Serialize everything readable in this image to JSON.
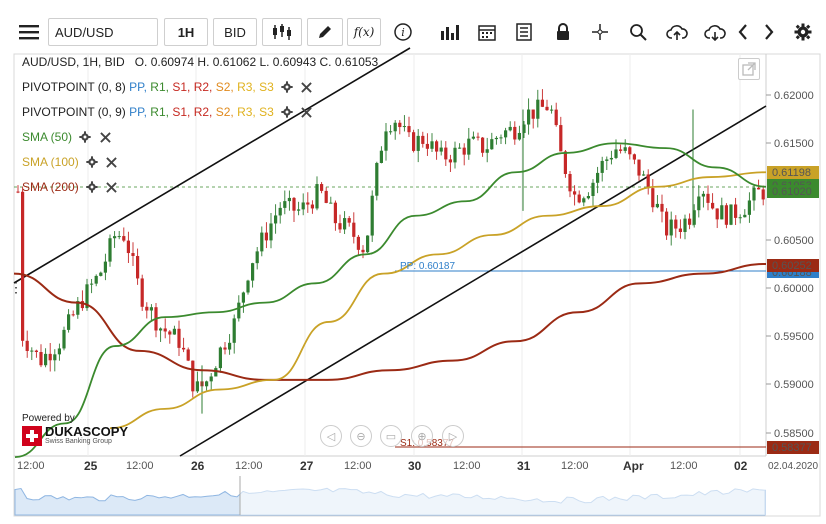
{
  "toolbar": {
    "menu_icon": "hamburger-icon",
    "symbol_value": "AUD/USD",
    "timeframe_label": "1H",
    "side_label": "BID",
    "fx_label": "f(x)"
  },
  "chart_header": {
    "ohlc_line": "AUD/USD, 1H, BID   O. 0.60974 H. 0.61062 L. 0.60943 C. 0.61053"
  },
  "legend": [
    {
      "text_parts": [
        "PIVOTPOINT (0, 8)",
        "PP,",
        "R1,",
        "S1,",
        "R2,",
        "S2,",
        "R3,",
        "S3"
      ],
      "id": "pivot-8"
    },
    {
      "text_parts": [
        "PIVOTPOINT (0, 9)",
        "PP,",
        "R1,",
        "S1,",
        "R2,",
        "S2,",
        "R3,",
        "S3"
      ],
      "id": "pivot-9"
    }
  ],
  "sma": [
    {
      "label": "SMA (50)",
      "color": "#3b8a2e"
    },
    {
      "label": "SMA (100)",
      "color": "#c9a227"
    },
    {
      "label": "SMA (200)",
      "color": "#9b2a14"
    }
  ],
  "colors": {
    "pp": "#2f7fc9",
    "r1": "#3b8a2e",
    "s1": "#c62a22",
    "r2": "#c62a22",
    "s2": "#e08a1e",
    "r3": "#e0b21e",
    "s3": "#e0b21e",
    "up": "#2e7d32",
    "down": "#c62828"
  },
  "price_axis": {
    "ticks": [
      "0.62000",
      "0.61500",
      "0.60500",
      "0.60000",
      "0.59500",
      "0.59000",
      "0.58500"
    ],
    "badges": [
      {
        "text": "0.61198",
        "color": "#c9a227",
        "text_color": "#222"
      },
      {
        "text": "0.61053",
        "color": "#3b8a2e",
        "text_color": "#fff"
      },
      {
        "text": "0.61020",
        "color": "#3b8a2e",
        "text_color": "#fff"
      },
      {
        "text": "0.60252",
        "color": "#9b2a14",
        "text_color": "#fff"
      },
      {
        "text": "0.60188",
        "color": "#2f7fc9",
        "text_color": "#fff"
      },
      {
        "text": "0.58377",
        "color": "#9b2a14",
        "text_color": "#fff"
      }
    ]
  },
  "pivot_lines": {
    "pp_label": "PP: 0.60187",
    "s1_label": "S1: 0.58377"
  },
  "time_axis": {
    "ticks": [
      "12:00",
      "25",
      "12:00",
      "26",
      "12:00",
      "27",
      "12:00",
      "30",
      "12:00",
      "31",
      "12:00",
      "Apr",
      "12:00",
      "02",
      "02.04.2020"
    ]
  },
  "watermark": {
    "powered_by": "Powered by",
    "brand": "DUKASCOPY",
    "tagline": "Swiss Banking Group"
  },
  "chart_data": {
    "type": "candlestick",
    "symbol": "AUD/USD",
    "timeframe": "1H",
    "y_range": [
      0.582,
      0.6225
    ],
    "series": [
      {
        "name": "SMA (50)",
        "values": [
          0.5825,
          0.586,
          0.594,
          0.597,
          0.5975,
          0.5985,
          0.6005,
          0.6035,
          0.6075,
          0.609,
          0.612,
          0.614,
          0.615,
          0.6145,
          0.6125,
          0.6105
        ]
      },
      {
        "name": "SMA (100)",
        "values": [
          0.5855,
          0.5875,
          0.5895,
          0.5905,
          0.5965,
          0.6015,
          0.6035,
          0.6055,
          0.6075,
          0.6085,
          0.6105,
          0.6115,
          0.612
        ]
      },
      {
        "name": "SMA (200)",
        "values": [
          0.6015,
          0.5985,
          0.5935,
          0.5915,
          0.5905,
          0.5905,
          0.5915,
          0.5925,
          0.5945,
          0.5975,
          0.6005,
          0.6015,
          0.6025
        ]
      }
    ]
  }
}
